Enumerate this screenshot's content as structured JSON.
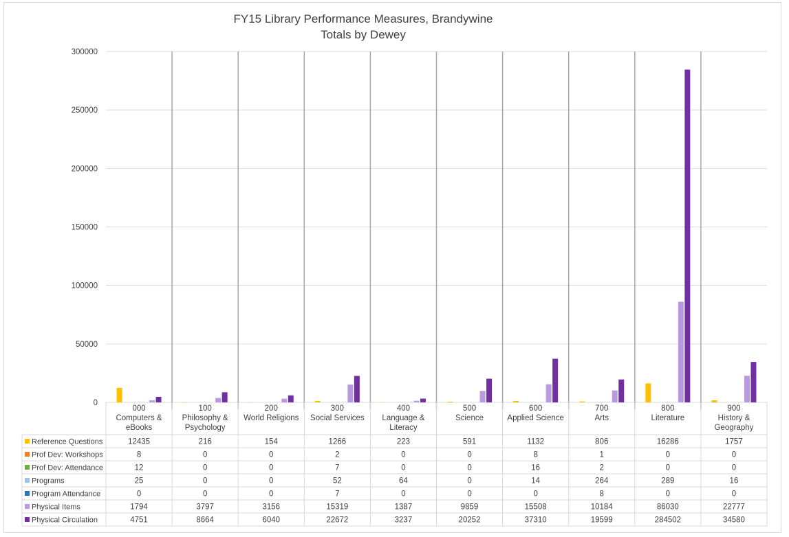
{
  "chart_data": {
    "type": "bar",
    "title": "FY15 Library Performance Measures, Brandywine",
    "subtitle": "Totals by Dewey",
    "ylim": [
      0,
      300000
    ],
    "y_ticks": [
      "300000",
      "250000",
      "200000",
      "150000",
      "100000",
      "50000",
      "0"
    ],
    "grid": true,
    "legend_placement": "data-table-left",
    "categories": [
      [
        "000",
        "Computers &",
        "eBooks"
      ],
      [
        "100",
        "Philosophy &",
        "Psychology"
      ],
      [
        "200",
        "World Religions"
      ],
      [
        "300",
        "Social Services"
      ],
      [
        "400",
        "Language &",
        "Literacy"
      ],
      [
        "500",
        "Science"
      ],
      [
        "600",
        "Applied Science"
      ],
      [
        "700",
        "Arts"
      ],
      [
        "800",
        "Literature"
      ],
      [
        "900",
        "History &",
        "Geography"
      ]
    ],
    "series": [
      {
        "name": "Reference Questions",
        "color": "#FFC000",
        "values": [
          12435,
          216,
          154,
          1266,
          223,
          591,
          1132,
          806,
          16286,
          1757
        ]
      },
      {
        "name": "Prof Dev: Workshops",
        "color": "#ED7D31",
        "values": [
          8,
          0,
          0,
          2,
          0,
          0,
          8,
          1,
          0,
          0
        ]
      },
      {
        "name": "Prof Dev: Attendance",
        "color": "#70AD47",
        "values": [
          12,
          0,
          0,
          7,
          0,
          0,
          16,
          2,
          0,
          0
        ]
      },
      {
        "name": "Programs",
        "color": "#9DC3E6",
        "values": [
          25,
          0,
          0,
          52,
          64,
          0,
          14,
          264,
          289,
          16
        ]
      },
      {
        "name": "Program Attendance",
        "color": "#2E75B6",
        "values": [
          0,
          0,
          0,
          7,
          0,
          0,
          0,
          8,
          0,
          0
        ]
      },
      {
        "name": "Physical Items",
        "color": "#B99AE0",
        "values": [
          1794,
          3797,
          3156,
          15319,
          1387,
          9859,
          15508,
          10184,
          86030,
          22777
        ]
      },
      {
        "name": "Physical Circulation",
        "color": "#7030A0",
        "values": [
          4751,
          8664,
          6040,
          22672,
          3237,
          20252,
          37310,
          19599,
          284502,
          34580
        ]
      }
    ]
  }
}
